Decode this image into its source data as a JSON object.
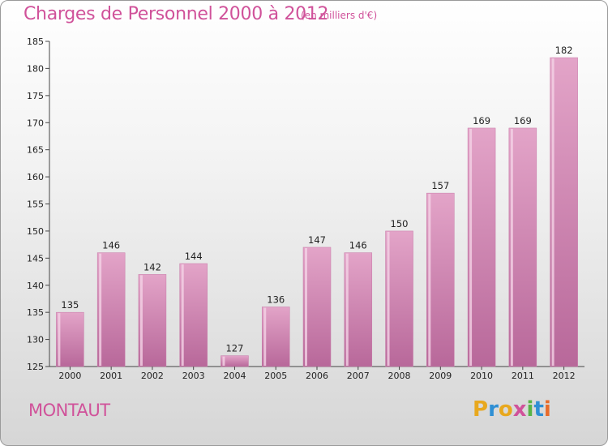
{
  "chart_data": {
    "type": "bar",
    "title": "Charges de Personnel 2000 à 2012",
    "subtitle": "(en milliers d'€)",
    "categories": [
      "2000",
      "2001",
      "2002",
      "2003",
      "2004",
      "2005",
      "2006",
      "2007",
      "2008",
      "2009",
      "2010",
      "2011",
      "2012"
    ],
    "values": [
      135,
      146,
      142,
      144,
      127,
      136,
      147,
      146,
      150,
      157,
      169,
      169,
      182
    ],
    "xlabel": "",
    "ylabel": "",
    "ylim": [
      125,
      185
    ],
    "yticks": [
      125,
      130,
      135,
      140,
      145,
      150,
      155,
      160,
      165,
      170,
      175,
      180,
      185
    ],
    "grid": false,
    "bar_color": "#d88bb6"
  },
  "footer": {
    "commune": "MONTAUT"
  },
  "logo": {
    "letters": [
      "P",
      "r",
      "o",
      "x",
      "i",
      "t",
      "i"
    ],
    "colors": [
      "#e8a81e",
      "#2f8fd4",
      "#e8a81e",
      "#d0529a",
      "#58b447",
      "#2f8fd4",
      "#e86b2b"
    ]
  },
  "colors": {
    "accent": "#d0529a"
  }
}
